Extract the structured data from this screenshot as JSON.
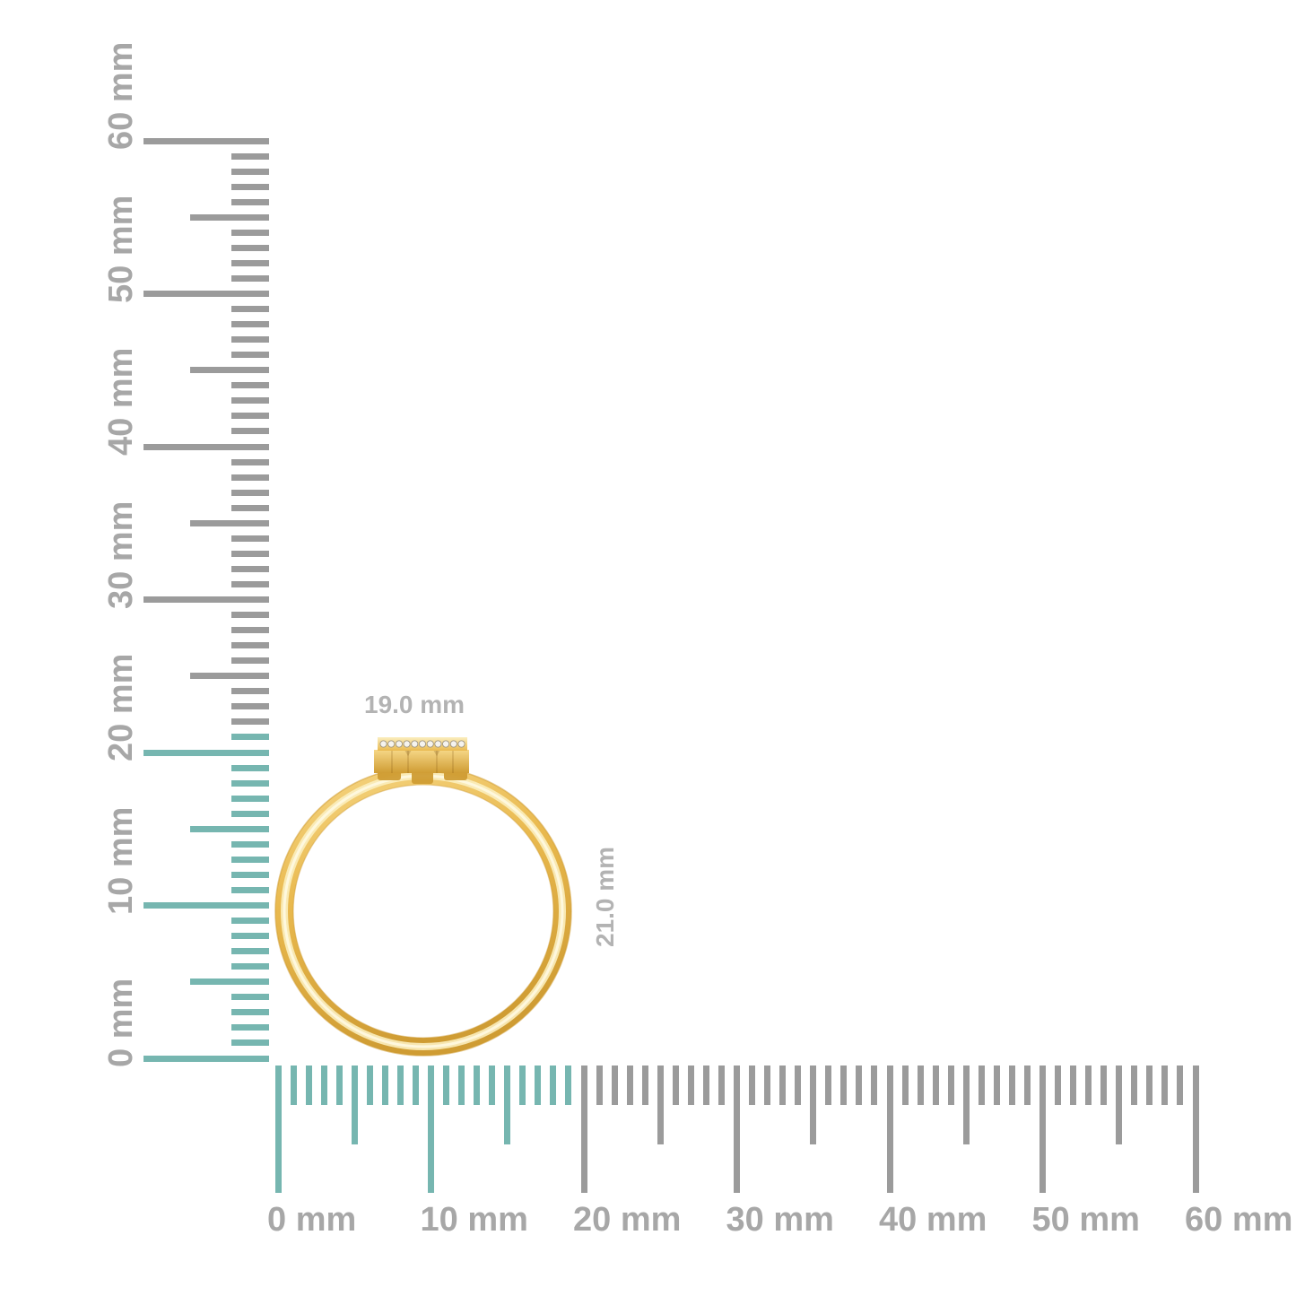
{
  "colors": {
    "background": "#ffffff",
    "highlight_teal": "#76b6b0",
    "tick_gray": "#9b9b9b",
    "ruler_label_gray": "#a7a7a7",
    "dimension_label_gray": "#b3b3b3",
    "gold_light": "#f6d787",
    "gold_mid": "#e9b94e",
    "gold_deep": "#cf9c33",
    "gold_pale": "#fbeebe",
    "diamond_white": "#f5f3ee",
    "diamond_edge": "#958d7c"
  },
  "rulers": {
    "unit": "mm",
    "vertical": {
      "max": 60,
      "labels": [
        "0 mm",
        "10 mm",
        "20 mm",
        "30 mm",
        "40 mm",
        "50 mm",
        "60 mm"
      ],
      "highlight_extent_mm": 21
    },
    "horizontal": {
      "max": 60,
      "labels": [
        "0 mm",
        "10 mm",
        "20 mm",
        "30 mm",
        "40 mm",
        "50 mm",
        "60 mm"
      ],
      "highlight_extent_mm": 19
    }
  },
  "ring": {
    "width_label": "19.0 mm",
    "height_label": "21.0 mm",
    "width_mm": 19.0,
    "height_mm": 21.0,
    "gem_count": 11
  }
}
